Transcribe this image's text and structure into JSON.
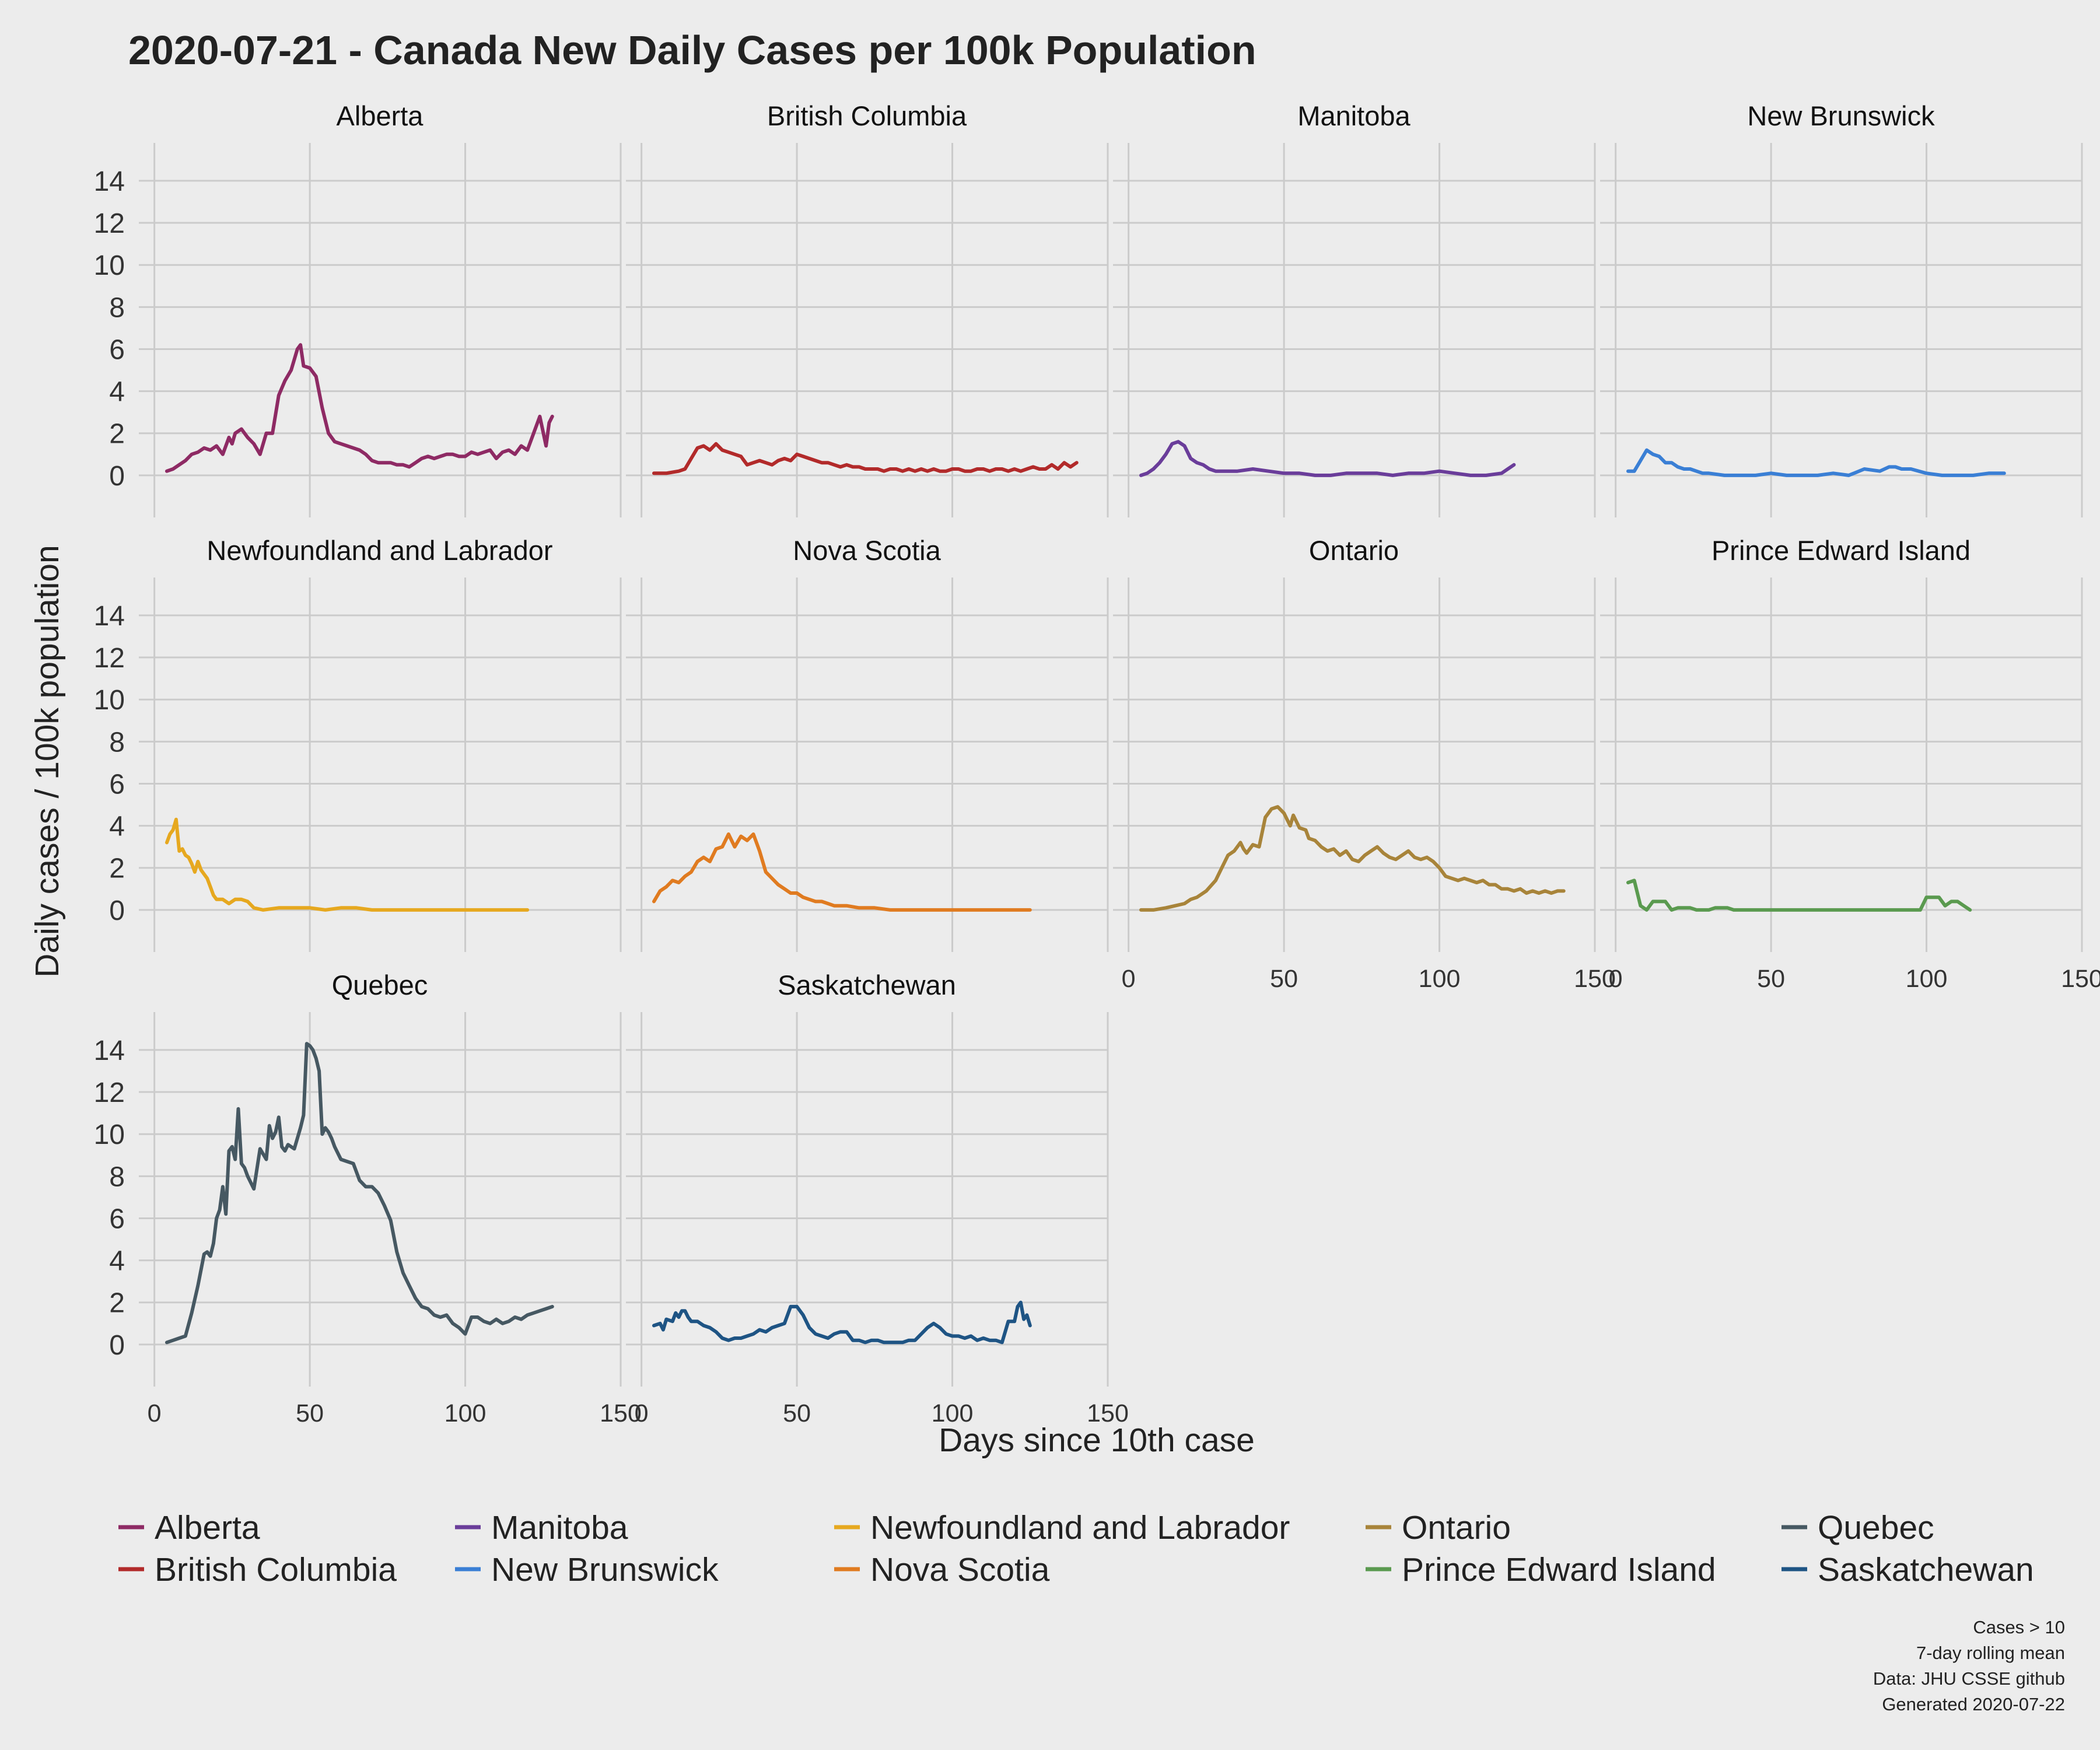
{
  "chart_data": {
    "type": "line",
    "title": "2020-07-21 - Canada New Daily Cases per 100k Population",
    "xlabel": "Days since 10th case",
    "ylabel": "Daily cases / 100k population",
    "xlim": [
      -5,
      150
    ],
    "ylim": [
      -2,
      15.8
    ],
    "x_ticks": [
      0,
      50,
      100,
      150
    ],
    "y_ticks": [
      0,
      2,
      4,
      6,
      8,
      10,
      12,
      14
    ],
    "grid": true,
    "legend_position": "bottom",
    "facet_layout": "wrap, 4 columns",
    "caption": [
      "Cases > 10",
      "7-day rolling mean",
      "Data: JHU CSSE github",
      "Generated 2020-07-22"
    ],
    "series": [
      {
        "name": "Alberta",
        "color": "#8e2a64",
        "x": [
          4,
          6,
          8,
          10,
          12,
          14,
          16,
          18,
          20,
          22,
          24,
          25,
          26,
          28,
          30,
          32,
          34,
          36,
          38,
          40,
          42,
          44,
          46,
          47,
          48,
          50,
          52,
          54,
          56,
          58,
          60,
          62,
          64,
          66,
          68,
          70,
          72,
          74,
          76,
          78,
          80,
          82,
          84,
          86,
          88,
          90,
          92,
          94,
          96,
          98,
          100,
          102,
          104,
          106,
          108,
          110,
          112,
          114,
          116,
          118,
          120,
          122,
          124,
          126,
          127,
          128
        ],
        "y": [
          0.2,
          0.3,
          0.5,
          0.7,
          1.0,
          1.1,
          1.3,
          1.2,
          1.4,
          1.0,
          1.8,
          1.5,
          2.0,
          2.2,
          1.8,
          1.5,
          1.0,
          2.0,
          2.0,
          3.8,
          4.5,
          5.0,
          6.0,
          6.2,
          5.2,
          5.1,
          4.7,
          3.2,
          2.0,
          1.6,
          1.5,
          1.4,
          1.3,
          1.2,
          1.0,
          0.7,
          0.6,
          0.6,
          0.6,
          0.5,
          0.5,
          0.4,
          0.6,
          0.8,
          0.9,
          0.8,
          0.9,
          1.0,
          1.0,
          0.9,
          0.9,
          1.1,
          1.0,
          1.1,
          1.2,
          0.8,
          1.1,
          1.2,
          1.0,
          1.4,
          1.2,
          2.0,
          2.8,
          1.4,
          2.5,
          2.8
        ]
      },
      {
        "name": "British Columbia",
        "color": "#b22a2a",
        "x": [
          4,
          8,
          12,
          14,
          16,
          18,
          20,
          22,
          24,
          26,
          28,
          30,
          32,
          34,
          36,
          38,
          40,
          42,
          44,
          46,
          48,
          50,
          52,
          54,
          56,
          58,
          60,
          62,
          64,
          66,
          68,
          70,
          72,
          74,
          76,
          78,
          80,
          82,
          84,
          86,
          88,
          90,
          92,
          94,
          96,
          98,
          100,
          102,
          104,
          106,
          108,
          110,
          112,
          114,
          116,
          118,
          120,
          122,
          124,
          126,
          128,
          130,
          132,
          134,
          136,
          138,
          140
        ],
        "y": [
          0.1,
          0.1,
          0.2,
          0.3,
          0.8,
          1.3,
          1.4,
          1.2,
          1.5,
          1.2,
          1.1,
          1.0,
          0.9,
          0.5,
          0.6,
          0.7,
          0.6,
          0.5,
          0.7,
          0.8,
          0.7,
          1.0,
          0.9,
          0.8,
          0.7,
          0.6,
          0.6,
          0.5,
          0.4,
          0.5,
          0.4,
          0.4,
          0.3,
          0.3,
          0.3,
          0.2,
          0.3,
          0.3,
          0.2,
          0.3,
          0.2,
          0.3,
          0.2,
          0.3,
          0.2,
          0.2,
          0.3,
          0.3,
          0.2,
          0.2,
          0.3,
          0.3,
          0.2,
          0.3,
          0.3,
          0.2,
          0.3,
          0.2,
          0.3,
          0.4,
          0.3,
          0.3,
          0.5,
          0.3,
          0.6,
          0.4,
          0.6
        ]
      },
      {
        "name": "Manitoba",
        "color": "#6a3d9a",
        "x": [
          4,
          6,
          8,
          10,
          12,
          14,
          16,
          18,
          20,
          22,
          24,
          26,
          28,
          30,
          35,
          40,
          45,
          50,
          55,
          60,
          65,
          70,
          75,
          80,
          85,
          90,
          95,
          100,
          105,
          110,
          115,
          120,
          122,
          124
        ],
        "y": [
          0.0,
          0.1,
          0.3,
          0.6,
          1.0,
          1.5,
          1.6,
          1.4,
          0.8,
          0.6,
          0.5,
          0.3,
          0.2,
          0.2,
          0.2,
          0.3,
          0.2,
          0.1,
          0.1,
          0.0,
          0.0,
          0.1,
          0.1,
          0.1,
          0.0,
          0.1,
          0.1,
          0.2,
          0.1,
          0.0,
          0.0,
          0.1,
          0.3,
          0.5
        ]
      },
      {
        "name": "New Brunswick",
        "color": "#3a7fd5",
        "x": [
          4,
          6,
          8,
          10,
          12,
          14,
          16,
          18,
          20,
          22,
          24,
          26,
          28,
          30,
          35,
          40,
          45,
          50,
          55,
          60,
          65,
          70,
          75,
          80,
          85,
          88,
          90,
          92,
          95,
          100,
          105,
          110,
          115,
          120,
          125
        ],
        "y": [
          0.2,
          0.2,
          0.7,
          1.2,
          1.0,
          0.9,
          0.6,
          0.6,
          0.4,
          0.3,
          0.3,
          0.2,
          0.1,
          0.1,
          0.0,
          0.0,
          0.0,
          0.1,
          0.0,
          0.0,
          0.0,
          0.1,
          0.0,
          0.3,
          0.2,
          0.4,
          0.4,
          0.3,
          0.3,
          0.1,
          0.0,
          0.0,
          0.0,
          0.1,
          0.1
        ]
      },
      {
        "name": "Newfoundland and Labrador",
        "color": "#e6a81f",
        "x": [
          4,
          5,
          6,
          7,
          8,
          9,
          10,
          11,
          12,
          13,
          14,
          15,
          16,
          17,
          18,
          19,
          20,
          22,
          24,
          26,
          28,
          30,
          32,
          35,
          40,
          45,
          50,
          55,
          60,
          65,
          70,
          75,
          80,
          85,
          90,
          95,
          100,
          105,
          110,
          115,
          120
        ],
        "y": [
          3.2,
          3.6,
          3.8,
          4.3,
          2.8,
          2.9,
          2.6,
          2.5,
          2.2,
          1.8,
          2.3,
          1.9,
          1.7,
          1.5,
          1.1,
          0.7,
          0.5,
          0.5,
          0.3,
          0.5,
          0.5,
          0.4,
          0.1,
          0.0,
          0.1,
          0.1,
          0.1,
          0.0,
          0.1,
          0.1,
          0.0,
          0.0,
          0.0,
          0.0,
          0.0,
          0.0,
          0.0,
          0.0,
          0.0,
          0.0,
          0.0
        ]
      },
      {
        "name": "Nova Scotia",
        "color": "#e07b20",
        "x": [
          4,
          6,
          8,
          10,
          12,
          14,
          16,
          18,
          20,
          22,
          24,
          26,
          28,
          30,
          32,
          34,
          36,
          38,
          40,
          42,
          44,
          46,
          48,
          50,
          52,
          54,
          56,
          58,
          60,
          62,
          64,
          66,
          70,
          75,
          80,
          85,
          90,
          95,
          100,
          105,
          110,
          115,
          120,
          125
        ],
        "y": [
          0.4,
          0.9,
          1.1,
          1.4,
          1.3,
          1.6,
          1.8,
          2.3,
          2.5,
          2.3,
          2.9,
          3.0,
          3.6,
          3.0,
          3.5,
          3.3,
          3.6,
          2.8,
          1.8,
          1.5,
          1.2,
          1.0,
          0.8,
          0.8,
          0.6,
          0.5,
          0.4,
          0.4,
          0.3,
          0.2,
          0.2,
          0.2,
          0.1,
          0.1,
          0.0,
          0.0,
          0.0,
          0.0,
          0.0,
          0.0,
          0.0,
          0.0,
          0.0,
          0.0
        ]
      },
      {
        "name": "Ontario",
        "color": "#a8843a",
        "x": [
          4,
          8,
          12,
          15,
          18,
          20,
          22,
          25,
          28,
          30,
          32,
          34,
          36,
          37,
          38,
          40,
          42,
          44,
          46,
          48,
          50,
          51,
          52,
          53,
          55,
          57,
          58,
          60,
          62,
          64,
          66,
          68,
          70,
          72,
          74,
          76,
          78,
          80,
          82,
          84,
          86,
          88,
          90,
          92,
          94,
          96,
          98,
          100,
          102,
          104,
          106,
          108,
          110,
          112,
          114,
          116,
          118,
          120,
          122,
          124,
          126,
          128,
          130,
          132,
          134,
          136,
          138,
          140
        ],
        "y": [
          0.0,
          0.0,
          0.1,
          0.2,
          0.3,
          0.5,
          0.6,
          0.9,
          1.4,
          2.0,
          2.6,
          2.8,
          3.2,
          2.9,
          2.7,
          3.1,
          3.0,
          4.4,
          4.8,
          4.9,
          4.6,
          4.3,
          4.0,
          4.5,
          3.9,
          3.8,
          3.4,
          3.3,
          3.0,
          2.8,
          2.9,
          2.6,
          2.8,
          2.4,
          2.3,
          2.6,
          2.8,
          3.0,
          2.7,
          2.5,
          2.4,
          2.6,
          2.8,
          2.5,
          2.4,
          2.5,
          2.3,
          2.0,
          1.6,
          1.5,
          1.4,
          1.5,
          1.4,
          1.3,
          1.4,
          1.2,
          1.2,
          1.0,
          1.0,
          0.9,
          1.0,
          0.8,
          0.9,
          0.8,
          0.9,
          0.8,
          0.9,
          0.9
        ]
      },
      {
        "name": "Prince Edward Island",
        "color": "#5a9a4f",
        "x": [
          4,
          6,
          8,
          10,
          12,
          14,
          16,
          18,
          20,
          22,
          24,
          26,
          28,
          30,
          32,
          34,
          36,
          38,
          40,
          45,
          50,
          55,
          60,
          65,
          70,
          75,
          80,
          85,
          90,
          95,
          98,
          100,
          102,
          104,
          106,
          108,
          110,
          112,
          114
        ],
        "y": [
          1.3,
          1.4,
          0.2,
          0.0,
          0.4,
          0.4,
          0.4,
          0.0,
          0.1,
          0.1,
          0.1,
          0.0,
          0.0,
          0.0,
          0.1,
          0.1,
          0.1,
          0.0,
          0.0,
          0.0,
          0.0,
          0.0,
          0.0,
          0.0,
          0.0,
          0.0,
          0.0,
          0.0,
          0.0,
          0.0,
          0.0,
          0.6,
          0.6,
          0.6,
          0.2,
          0.4,
          0.4,
          0.2,
          0.0
        ]
      },
      {
        "name": "Quebec",
        "color": "#465862",
        "x": [
          4,
          6,
          8,
          10,
          12,
          14,
          16,
          17,
          18,
          19,
          20,
          21,
          22,
          23,
          24,
          25,
          26,
          27,
          28,
          29,
          30,
          32,
          34,
          36,
          37,
          38,
          39,
          40,
          41,
          42,
          43,
          44,
          45,
          46,
          47,
          48,
          49,
          50,
          51,
          52,
          53,
          54,
          55,
          56,
          57,
          58,
          60,
          62,
          64,
          66,
          68,
          70,
          72,
          74,
          76,
          78,
          80,
          82,
          84,
          86,
          88,
          90,
          92,
          94,
          96,
          98,
          100,
          102,
          104,
          106,
          108,
          110,
          112,
          114,
          116,
          118,
          120,
          122,
          124,
          126,
          128
        ],
        "y": [
          0.1,
          0.2,
          0.3,
          0.4,
          1.5,
          2.8,
          4.3,
          4.4,
          4.2,
          4.8,
          6.0,
          6.4,
          7.5,
          6.2,
          9.2,
          9.4,
          8.8,
          11.2,
          8.6,
          8.4,
          8.0,
          7.4,
          9.3,
          8.8,
          10.4,
          9.8,
          10.1,
          10.8,
          9.4,
          9.2,
          9.5,
          9.4,
          9.3,
          9.8,
          10.3,
          10.9,
          14.3,
          14.2,
          14.0,
          13.6,
          13.0,
          10.0,
          10.3,
          10.1,
          9.8,
          9.4,
          8.8,
          8.7,
          8.6,
          7.8,
          7.5,
          7.5,
          7.2,
          6.6,
          5.9,
          4.4,
          3.4,
          2.8,
          2.2,
          1.8,
          1.7,
          1.4,
          1.3,
          1.4,
          1.0,
          0.8,
          0.5,
          1.3,
          1.3,
          1.1,
          1.0,
          1.2,
          1.0,
          1.1,
          1.3,
          1.2,
          1.4,
          1.5,
          1.6,
          1.7,
          1.8
        ]
      },
      {
        "name": "Saskatchewan",
        "color": "#1e5484",
        "x": [
          4,
          6,
          7,
          8,
          10,
          11,
          12,
          13,
          14,
          15,
          16,
          18,
          20,
          22,
          24,
          26,
          28,
          30,
          32,
          34,
          36,
          38,
          40,
          42,
          44,
          46,
          48,
          50,
          52,
          54,
          56,
          58,
          60,
          62,
          64,
          66,
          68,
          70,
          72,
          74,
          76,
          78,
          80,
          82,
          84,
          86,
          88,
          90,
          92,
          94,
          96,
          98,
          100,
          102,
          104,
          106,
          108,
          110,
          112,
          114,
          116,
          118,
          120,
          121,
          122,
          123,
          124,
          125
        ],
        "y": [
          0.9,
          1.0,
          0.7,
          1.2,
          1.1,
          1.5,
          1.3,
          1.6,
          1.6,
          1.3,
          1.1,
          1.1,
          0.9,
          0.8,
          0.6,
          0.3,
          0.2,
          0.3,
          0.3,
          0.4,
          0.5,
          0.7,
          0.6,
          0.8,
          0.9,
          1.0,
          1.8,
          1.8,
          1.4,
          0.8,
          0.5,
          0.4,
          0.3,
          0.5,
          0.6,
          0.6,
          0.2,
          0.2,
          0.1,
          0.2,
          0.2,
          0.1,
          0.1,
          0.1,
          0.1,
          0.2,
          0.2,
          0.5,
          0.8,
          1.0,
          0.8,
          0.5,
          0.4,
          0.4,
          0.3,
          0.4,
          0.2,
          0.3,
          0.2,
          0.2,
          0.1,
          1.1,
          1.1,
          1.8,
          2.0,
          1.2,
          1.4,
          0.9
        ]
      }
    ]
  }
}
